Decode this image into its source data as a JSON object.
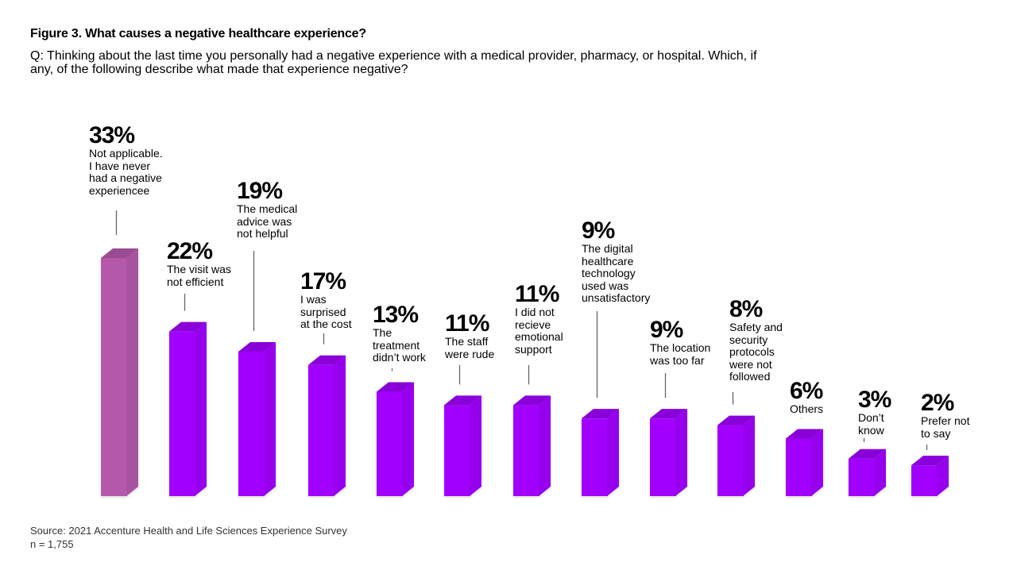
{
  "header": {
    "title": "Figure 3. What causes a negative healthcare experience?",
    "question": "Q: Thinking about the last time you personally had a negative experience with a medical provider, pharmacy, or hospital. Which, if any, of the following describe what made that experience negative?"
  },
  "footer": {
    "source": "Source: 2021 Accenture Health and Life Sciences Experience Survey",
    "n": "n = 1,755"
  },
  "colors": {
    "highlight": "#B558AB",
    "primary": "#A100FF"
  },
  "chart_data": {
    "type": "bar",
    "style": "3d-column",
    "title": "Figure 3. What causes a negative healthcare experience?",
    "xlabel": "",
    "ylabel": "",
    "ylim": [
      0,
      33
    ],
    "grid": false,
    "legend": "none",
    "categories": [
      "Not applicable. I have never had a negative experiencee",
      "The visit was not efficient",
      "The medical advice was not helpful",
      "I was surprised at the cost",
      "The treatment didn’t work",
      "The staff were rude",
      "I did not recieve emotional support",
      "The digital healthcare technology used was unsatisfactory",
      "The location was too far",
      "Safety and security protocols were not followed",
      "Others",
      "Don’t know",
      "Prefer not to say"
    ],
    "values": [
      33,
      22,
      19,
      17,
      13,
      11,
      11,
      9,
      9,
      8,
      6,
      3,
      2
    ],
    "value_labels": [
      "33%",
      "22%",
      "19%",
      "17%",
      "13%",
      "11%",
      "11%",
      "9%",
      "9%",
      "8%",
      "6%",
      "3%",
      "2%"
    ],
    "label_lines": [
      "Not applicable.\nI have never\nhad a negative\nexperiencee",
      "The visit was\nnot efficient",
      "The medical\nadvice was\nnot helpful",
      "I was\nsurprised\nat the cost",
      "The\ntreatment\ndidn’t work",
      "The staff\nwere rude",
      "I did not\nrecieve\nemotional\nsupport",
      "The digital\nhealthcare\ntechnology\nused was\nunsatisfactory",
      "The location\nwas too far",
      "Safety and\nsecurity\nprotocols\nwere not\nfollowed",
      "Others",
      "Don’t\nknow",
      "Prefer not\nto say"
    ],
    "highlighted_index": 0
  }
}
